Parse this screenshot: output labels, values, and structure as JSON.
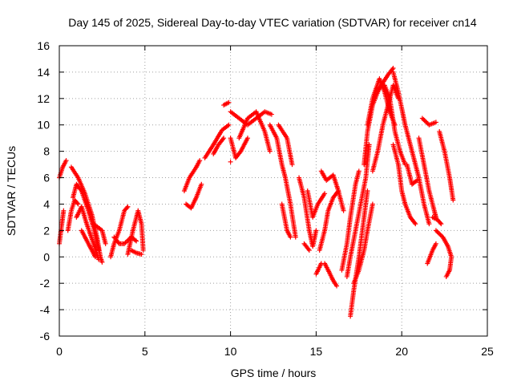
{
  "chart_data": {
    "type": "scatter",
    "title": "Day 145 of 2025, Sidereal Day-to-day VTEC variation (SDTVAR) for receiver cn14",
    "xlabel": "GPS time / hours",
    "ylabel": "SDTVAR / TECUs",
    "xlim": [
      0,
      25
    ],
    "ylim": [
      -6,
      16
    ],
    "xticks": [
      "0",
      "5",
      "10",
      "15",
      "20",
      "25"
    ],
    "yticks": [
      "-6",
      "-4",
      "-2",
      "0",
      "2",
      "4",
      "6",
      "8",
      "10",
      "12",
      "14",
      "16"
    ],
    "grid": true,
    "marker": "+",
    "color": "#ff0000",
    "segments": [
      [
        [
          0.0,
          1.0
        ],
        [
          0.15,
          2.5
        ],
        [
          0.25,
          3.5
        ]
      ],
      [
        [
          0.0,
          6.0
        ],
        [
          0.2,
          6.8
        ],
        [
          0.4,
          7.3
        ]
      ],
      [
        [
          0.5,
          2.0
        ],
        [
          0.7,
          3.5
        ],
        [
          0.9,
          4.3
        ],
        [
          1.1,
          4.0
        ]
      ],
      [
        [
          0.7,
          6.8
        ],
        [
          1.1,
          6.0
        ],
        [
          1.5,
          4.8
        ],
        [
          1.9,
          3.2
        ],
        [
          2.2,
          1.5
        ],
        [
          2.4,
          0.0
        ],
        [
          2.5,
          -0.4
        ]
      ],
      [
        [
          0.8,
          4.5
        ],
        [
          1.0,
          5.5
        ],
        [
          1.3,
          5.0
        ],
        [
          1.7,
          3.5
        ],
        [
          2.0,
          2.2
        ],
        [
          2.3,
          0.5
        ]
      ],
      [
        [
          1.0,
          3.0
        ],
        [
          1.3,
          3.8
        ],
        [
          1.6,
          2.5
        ],
        [
          2.0,
          1.0
        ],
        [
          2.3,
          -0.2
        ]
      ],
      [
        [
          1.3,
          2.0
        ],
        [
          1.7,
          1.0
        ],
        [
          2.1,
          0.0
        ]
      ],
      [
        [
          2.0,
          2.5
        ],
        [
          2.5,
          2.0
        ],
        [
          2.7,
          1.0
        ]
      ],
      [
        [
          3.0,
          0.0
        ],
        [
          3.2,
          1.0
        ],
        [
          3.5,
          2.0
        ],
        [
          3.8,
          3.5
        ],
        [
          4.0,
          3.8
        ]
      ],
      [
        [
          3.2,
          1.5
        ],
        [
          3.5,
          1.0
        ],
        [
          3.8,
          1.0
        ],
        [
          4.2,
          1.5
        ],
        [
          4.5,
          1.2
        ]
      ],
      [
        [
          4.0,
          0.2
        ],
        [
          4.3,
          2.0
        ],
        [
          4.6,
          3.5
        ],
        [
          4.8,
          2.5
        ],
        [
          4.9,
          0.5
        ]
      ],
      [
        [
          4.2,
          0.5
        ],
        [
          4.5,
          0.3
        ],
        [
          4.8,
          0.2
        ]
      ],
      [
        [
          7.3,
          5.0
        ],
        [
          7.6,
          6.0
        ],
        [
          8.0,
          6.8
        ],
        [
          8.2,
          7.3
        ]
      ],
      [
        [
          7.4,
          4.0
        ],
        [
          7.7,
          3.7
        ],
        [
          8.0,
          4.5
        ],
        [
          8.3,
          5.5
        ]
      ],
      [
        [
          8.5,
          7.5
        ],
        [
          9.0,
          8.5
        ],
        [
          9.5,
          9.6
        ],
        [
          9.9,
          10.0
        ]
      ],
      [
        [
          9.0,
          7.8
        ],
        [
          9.3,
          8.5
        ],
        [
          9.6,
          9.0
        ]
      ],
      [
        [
          9.6,
          11.5
        ],
        [
          9.9,
          11.7
        ]
      ],
      [
        [
          10.0,
          9.0
        ],
        [
          10.3,
          7.5
        ],
        [
          10.6,
          8.0
        ],
        [
          11.0,
          9.0
        ]
      ],
      [
        [
          10.0,
          11.0
        ],
        [
          10.5,
          10.5
        ],
        [
          11.0,
          10.0
        ],
        [
          11.5,
          10.5
        ],
        [
          12.0,
          11.0
        ],
        [
          12.4,
          10.8
        ]
      ],
      [
        [
          10.5,
          9.0
        ],
        [
          11.0,
          10.5
        ],
        [
          11.5,
          11.0
        ],
        [
          12.0,
          9.5
        ],
        [
          12.3,
          8.0
        ]
      ],
      [
        [
          10.0,
          7.2
        ]
      ],
      [
        [
          12.3,
          10.0
        ],
        [
          12.7,
          9.0
        ],
        [
          13.0,
          7.0
        ],
        [
          13.2,
          6.0
        ],
        [
          13.5,
          4.0
        ],
        [
          13.8,
          1.5
        ]
      ],
      [
        [
          12.8,
          10.0
        ],
        [
          13.3,
          9.0
        ],
        [
          13.6,
          7.0
        ]
      ],
      [
        [
          13.0,
          4.0
        ],
        [
          13.3,
          2.0
        ],
        [
          13.5,
          1.5
        ]
      ],
      [
        [
          14.0,
          6.0
        ],
        [
          14.3,
          4.5
        ],
        [
          14.6,
          2.0
        ],
        [
          14.8,
          0.8
        ],
        [
          15.0,
          2.0
        ]
      ],
      [
        [
          14.3,
          1.0
        ],
        [
          14.6,
          0.5
        ]
      ],
      [
        [
          14.5,
          5.0
        ],
        [
          14.8,
          3.0
        ],
        [
          15.1,
          4.0
        ],
        [
          15.5,
          4.8
        ]
      ],
      [
        [
          15.2,
          0.5
        ],
        [
          15.5,
          2.0
        ],
        [
          15.7,
          3.5
        ],
        [
          16.0,
          4.5
        ],
        [
          16.3,
          5.0
        ],
        [
          16.6,
          3.5
        ]
      ],
      [
        [
          15.3,
          6.5
        ],
        [
          15.6,
          5.8
        ],
        [
          16.0,
          6.2
        ],
        [
          16.3,
          5.0
        ]
      ],
      [
        [
          15.0,
          -1.3
        ],
        [
          15.3,
          -0.5
        ]
      ],
      [
        [
          15.5,
          -0.5
        ],
        [
          15.7,
          -1.0
        ],
        [
          16.0,
          -1.8
        ],
        [
          16.2,
          -2.2
        ]
      ],
      [
        [
          16.5,
          -1.0
        ],
        [
          16.8,
          1.0
        ],
        [
          17.0,
          3.0
        ],
        [
          17.3,
          5.5
        ],
        [
          17.5,
          6.5
        ]
      ],
      [
        [
          16.8,
          -1.5
        ],
        [
          17.0,
          0.0
        ],
        [
          17.3,
          2.0
        ],
        [
          17.6,
          4.0
        ],
        [
          17.9,
          6.0
        ],
        [
          18.1,
          8.5
        ]
      ],
      [
        [
          17.0,
          -4.5
        ],
        [
          17.2,
          -2.5
        ],
        [
          17.5,
          0.0
        ],
        [
          17.8,
          3.0
        ],
        [
          18.0,
          5.0
        ]
      ],
      [
        [
          17.2,
          -2.0
        ],
        [
          17.5,
          -1.0
        ],
        [
          17.8,
          0.5
        ],
        [
          18.0,
          2.0
        ],
        [
          18.3,
          4.0
        ]
      ],
      [
        [
          17.8,
          7.0
        ],
        [
          18.0,
          9.5
        ],
        [
          18.3,
          11.5
        ],
        [
          18.6,
          12.5
        ],
        [
          18.9,
          13.2
        ],
        [
          19.2,
          13.8
        ],
        [
          19.5,
          14.3
        ]
      ],
      [
        [
          18.0,
          10.0
        ],
        [
          18.3,
          12.0
        ],
        [
          18.7,
          13.5
        ],
        [
          19.0,
          12.5
        ],
        [
          19.3,
          11.0
        ],
        [
          19.6,
          10.0
        ]
      ],
      [
        [
          18.3,
          6.5
        ],
        [
          18.6,
          8.0
        ],
        [
          18.9,
          10.0
        ],
        [
          19.2,
          11.5
        ],
        [
          19.5,
          13.0
        ],
        [
          19.8,
          12.0
        ]
      ],
      [
        [
          19.0,
          13.0
        ],
        [
          19.3,
          12.0
        ],
        [
          19.6,
          9.5
        ],
        [
          19.9,
          8.0
        ],
        [
          20.2,
          7.0
        ]
      ],
      [
        [
          19.5,
          14.0
        ],
        [
          19.8,
          12.5
        ],
        [
          20.2,
          10.0
        ],
        [
          20.6,
          8.0
        ],
        [
          21.0,
          6.0
        ],
        [
          21.3,
          4.0
        ],
        [
          21.6,
          2.5
        ]
      ],
      [
        [
          19.5,
          8.5
        ],
        [
          19.8,
          7.0
        ],
        [
          20.0,
          5.0
        ],
        [
          20.2,
          4.0
        ]
      ],
      [
        [
          20.2,
          4.0
        ],
        [
          20.5,
          3.0
        ],
        [
          20.8,
          2.5
        ]
      ],
      [
        [
          20.3,
          7.0
        ],
        [
          20.6,
          5.5
        ],
        [
          20.9,
          5.8
        ]
      ],
      [
        [
          21.0,
          9.0
        ],
        [
          21.3,
          7.0
        ],
        [
          21.6,
          5.0
        ],
        [
          21.9,
          3.5
        ],
        [
          22.0,
          3.0
        ]
      ],
      [
        [
          21.2,
          10.5
        ],
        [
          21.6,
          10.0
        ],
        [
          22.0,
          10.2
        ]
      ],
      [
        [
          21.5,
          -0.5
        ],
        [
          21.8,
          0.5
        ],
        [
          22.0,
          1.0
        ]
      ],
      [
        [
          21.8,
          3.0
        ],
        [
          22.1,
          2.8
        ],
        [
          22.3,
          2.5
        ]
      ],
      [
        [
          22.2,
          9.5
        ],
        [
          22.5,
          8.0
        ],
        [
          22.8,
          6.0
        ],
        [
          23.0,
          4.3
        ]
      ],
      [
        [
          22.0,
          2.0
        ],
        [
          22.4,
          1.5
        ],
        [
          22.7,
          0.8
        ],
        [
          22.9,
          0.0
        ],
        [
          22.8,
          -1.0
        ],
        [
          22.6,
          -1.5
        ]
      ]
    ]
  }
}
